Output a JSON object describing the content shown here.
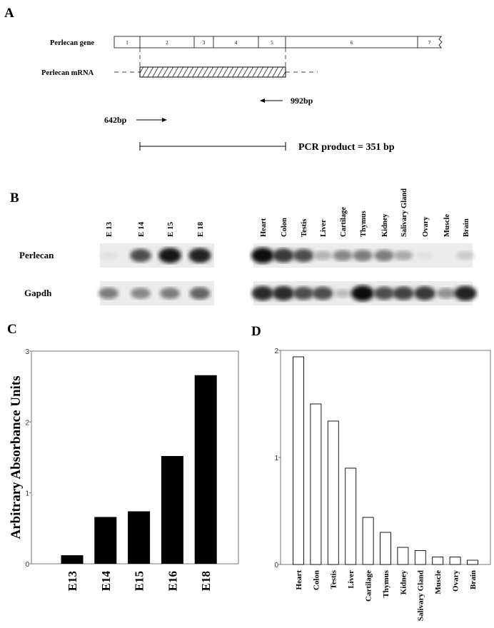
{
  "panel_a": {
    "label": "A",
    "gene_label": "Perlecan gene",
    "mrna_label": "Perlecan mRNA",
    "exons": [
      "1",
      "2",
      "3",
      "4",
      "5",
      "6",
      "7"
    ],
    "reverse_primer": "992bp",
    "forward_primer": "642bp",
    "pcr_product": "PCR product = 351 bp"
  },
  "panel_b": {
    "label": "B",
    "row_labels": [
      "Perlecan",
      "Gapdh"
    ],
    "embryo_lanes": [
      "E 13",
      "E 14",
      "E 15",
      "E 18"
    ],
    "tissue_lanes": [
      "Heart",
      "Colon",
      "Testis",
      "Liver",
      "Cartilage",
      "Thymus",
      "Kidney",
      "Salivary Gland",
      "Ovary",
      "Muscle",
      "Brain"
    ],
    "embryo_perlecan_intensity": [
      0.05,
      0.7,
      0.95,
      0.9
    ],
    "embryo_gapdh_intensity": [
      0.5,
      0.45,
      0.5,
      0.6
    ],
    "tissue_perlecan_intensity": [
      1,
      0.8,
      0.7,
      0.25,
      0.45,
      0.5,
      0.5,
      0.3,
      0.05,
      0,
      0.15
    ],
    "tissue_gapdh_intensity": [
      0.85,
      0.85,
      0.7,
      0.7,
      0.2,
      1,
      0.7,
      0.75,
      0.8,
      0.4,
      0.9
    ]
  },
  "chart_data": [
    {
      "panel": "C",
      "type": "bar",
      "title": "",
      "categories": [
        "E13",
        "E14",
        "E15",
        "E16",
        "E18"
      ],
      "values": [
        0.12,
        0.66,
        0.74,
        1.52,
        2.66
      ],
      "xlabel": "",
      "ylabel": "Arbitrary Absorbance Units",
      "ylim": [
        0,
        3
      ],
      "yticks": [
        "0",
        "1",
        "2",
        "3"
      ],
      "bar_color": "#000000",
      "grid": false
    },
    {
      "panel": "D",
      "type": "bar",
      "title": "",
      "categories": [
        "Heart",
        "Colon",
        "Testis",
        "Liver",
        "Cartilage",
        "Thymus",
        "Kidney",
        "Salivary Gland",
        "Muscle",
        "Ovary",
        "Brain"
      ],
      "values": [
        1.94,
        1.5,
        1.34,
        0.9,
        0.44,
        0.3,
        0.16,
        0.13,
        0.07,
        0.07,
        0.04
      ],
      "xlabel": "",
      "ylabel": "",
      "ylim": [
        0,
        2
      ],
      "yticks": [
        "0",
        "1",
        "2"
      ],
      "bar_color": "#ffffff",
      "grid": false
    }
  ]
}
